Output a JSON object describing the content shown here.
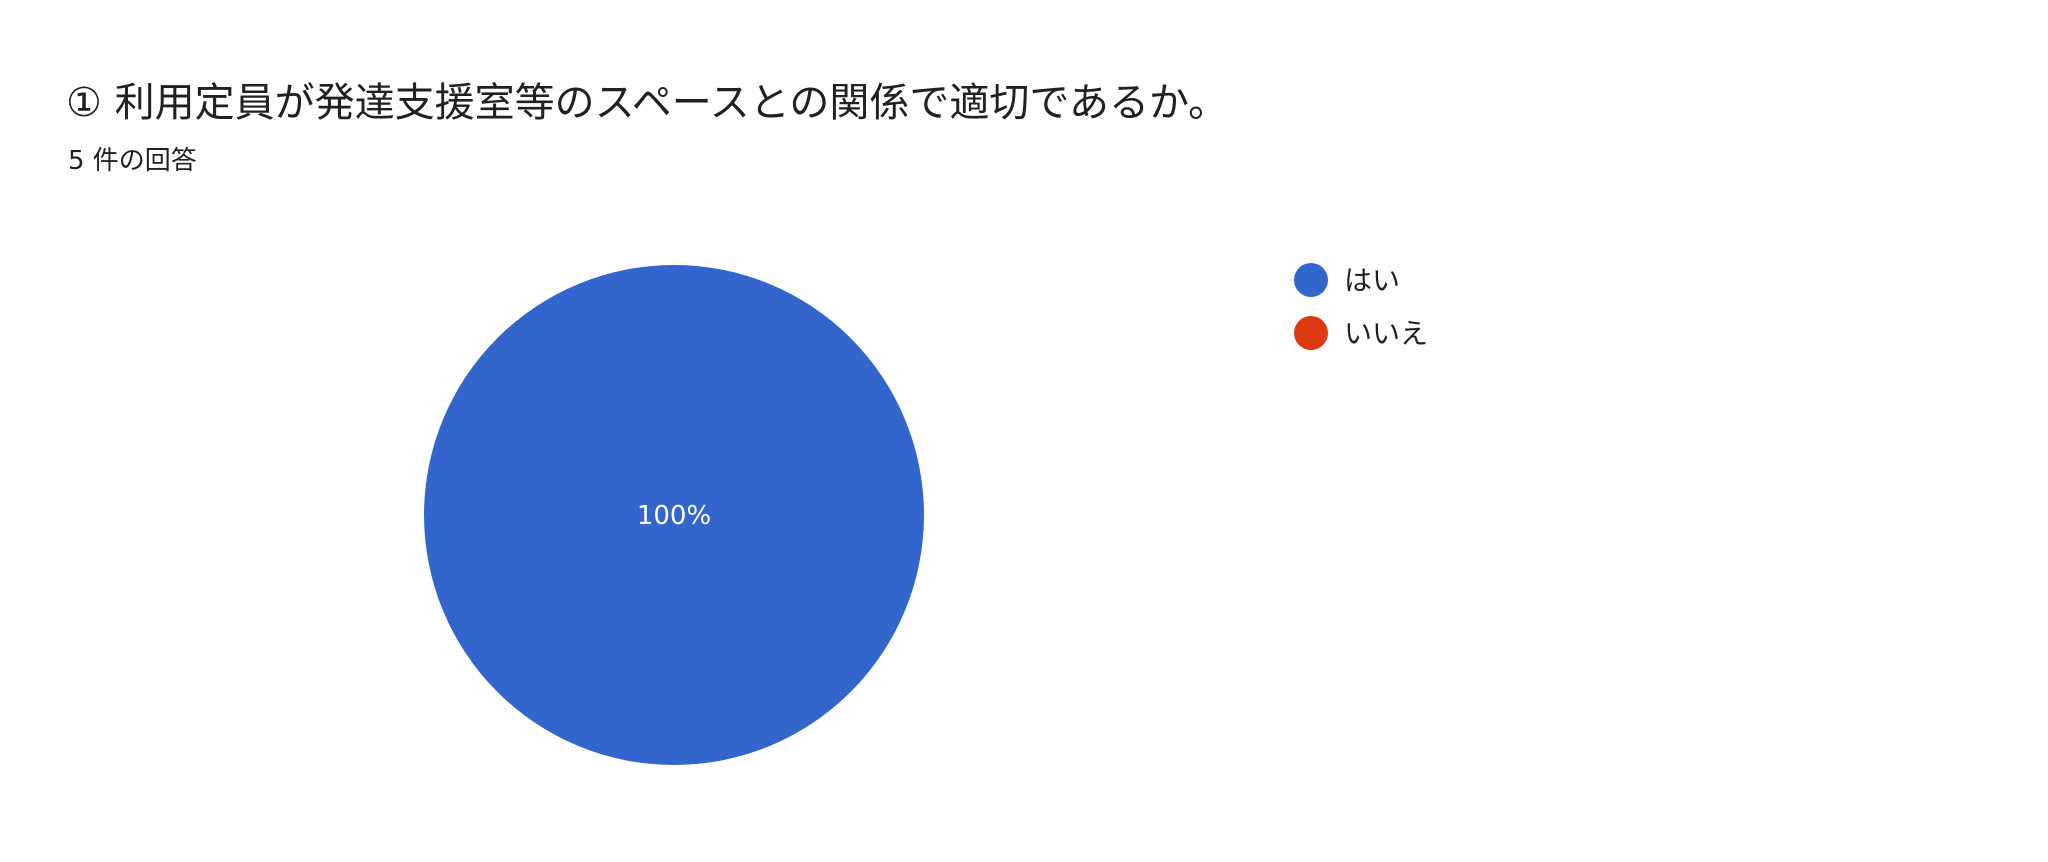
{
  "title": "① 利用定員が発達支援室等のスペースとの関係で適切であるか。",
  "subtitle": "5 件の回答",
  "chart_data": {
    "type": "pie",
    "categories": [
      "はい",
      "いいえ"
    ],
    "values": [
      5,
      0
    ],
    "percent_labels": [
      "100%",
      ""
    ],
    "colors": [
      "#3366cc",
      "#dc3912"
    ],
    "legend": "right"
  }
}
